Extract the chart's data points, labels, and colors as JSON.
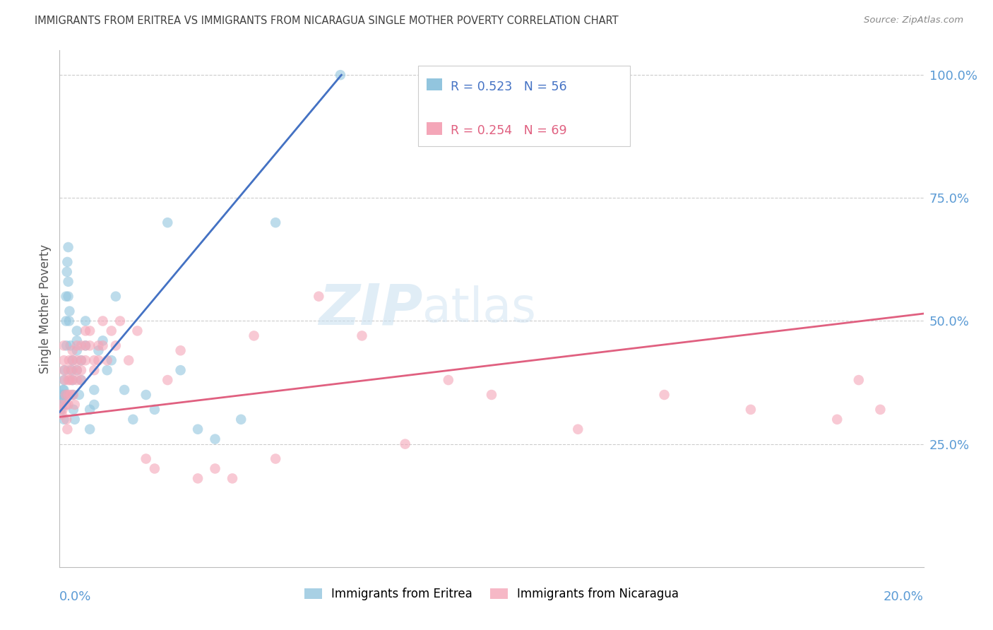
{
  "title": "IMMIGRANTS FROM ERITREA VS IMMIGRANTS FROM NICARAGUA SINGLE MOTHER POVERTY CORRELATION CHART",
  "source": "Source: ZipAtlas.com",
  "ylabel": "Single Mother Poverty",
  "R_eritrea": 0.523,
  "N_eritrea": 56,
  "R_nicaragua": 0.254,
  "N_nicaragua": 69,
  "color_eritrea": "#92c5de",
  "color_nicaragua": "#f4a6b8",
  "line_color_eritrea": "#4472c4",
  "line_color_nicaragua": "#e06080",
  "bg_color": "#ffffff",
  "axis_label_color": "#5b9bd5",
  "title_color": "#404040",
  "xmin": 0.0,
  "xmax": 0.2,
  "ymin": 0.0,
  "ymax": 1.05,
  "eritrea_intercept": 0.315,
  "eritrea_slope": 10.5,
  "nicaragua_intercept": 0.305,
  "nicaragua_slope": 1.05,
  "eritrea_x": [
    0.0003,
    0.0005,
    0.0006,
    0.0008,
    0.001,
    0.001,
    0.001,
    0.001,
    0.0012,
    0.0013,
    0.0015,
    0.0015,
    0.0016,
    0.0017,
    0.0018,
    0.002,
    0.002,
    0.002,
    0.0022,
    0.0023,
    0.0025,
    0.0027,
    0.003,
    0.003,
    0.003,
    0.0032,
    0.0035,
    0.004,
    0.004,
    0.004,
    0.004,
    0.0045,
    0.005,
    0.005,
    0.006,
    0.006,
    0.007,
    0.007,
    0.008,
    0.008,
    0.009,
    0.01,
    0.011,
    0.012,
    0.013,
    0.015,
    0.017,
    0.02,
    0.022,
    0.025,
    0.028,
    0.032,
    0.036,
    0.042,
    0.05,
    0.065
  ],
  "eritrea_y": [
    0.32,
    0.34,
    0.35,
    0.36,
    0.38,
    0.36,
    0.34,
    0.3,
    0.4,
    0.35,
    0.55,
    0.5,
    0.45,
    0.6,
    0.62,
    0.65,
    0.58,
    0.55,
    0.5,
    0.52,
    0.45,
    0.4,
    0.42,
    0.38,
    0.35,
    0.32,
    0.3,
    0.48,
    0.46,
    0.44,
    0.4,
    0.35,
    0.42,
    0.38,
    0.45,
    0.5,
    0.32,
    0.28,
    0.36,
    0.33,
    0.44,
    0.46,
    0.4,
    0.42,
    0.55,
    0.36,
    0.3,
    0.35,
    0.32,
    0.7,
    0.4,
    0.28,
    0.26,
    0.3,
    0.7,
    1.0
  ],
  "nicaragua_x": [
    0.0003,
    0.0005,
    0.0007,
    0.001,
    0.001,
    0.001,
    0.0012,
    0.0014,
    0.0015,
    0.0016,
    0.0018,
    0.002,
    0.002,
    0.002,
    0.002,
    0.0022,
    0.0024,
    0.0025,
    0.003,
    0.003,
    0.003,
    0.003,
    0.0032,
    0.0035,
    0.004,
    0.004,
    0.004,
    0.004,
    0.005,
    0.005,
    0.005,
    0.005,
    0.006,
    0.006,
    0.006,
    0.007,
    0.007,
    0.008,
    0.008,
    0.009,
    0.009,
    0.01,
    0.01,
    0.011,
    0.012,
    0.013,
    0.014,
    0.016,
    0.018,
    0.02,
    0.022,
    0.025,
    0.028,
    0.032,
    0.036,
    0.04,
    0.045,
    0.05,
    0.06,
    0.07,
    0.08,
    0.09,
    0.1,
    0.12,
    0.14,
    0.16,
    0.18,
    0.185,
    0.19
  ],
  "nicaragua_y": [
    0.33,
    0.31,
    0.32,
    0.45,
    0.42,
    0.4,
    0.38,
    0.35,
    0.33,
    0.3,
    0.28,
    0.4,
    0.38,
    0.35,
    0.33,
    0.42,
    0.38,
    0.35,
    0.44,
    0.42,
    0.4,
    0.38,
    0.35,
    0.33,
    0.45,
    0.42,
    0.4,
    0.38,
    0.45,
    0.42,
    0.4,
    0.38,
    0.48,
    0.45,
    0.42,
    0.48,
    0.45,
    0.42,
    0.4,
    0.45,
    0.42,
    0.5,
    0.45,
    0.42,
    0.48,
    0.45,
    0.5,
    0.42,
    0.48,
    0.22,
    0.2,
    0.38,
    0.44,
    0.18,
    0.2,
    0.18,
    0.47,
    0.22,
    0.55,
    0.47,
    0.25,
    0.38,
    0.35,
    0.28,
    0.35,
    0.32,
    0.3,
    0.38,
    0.32
  ]
}
